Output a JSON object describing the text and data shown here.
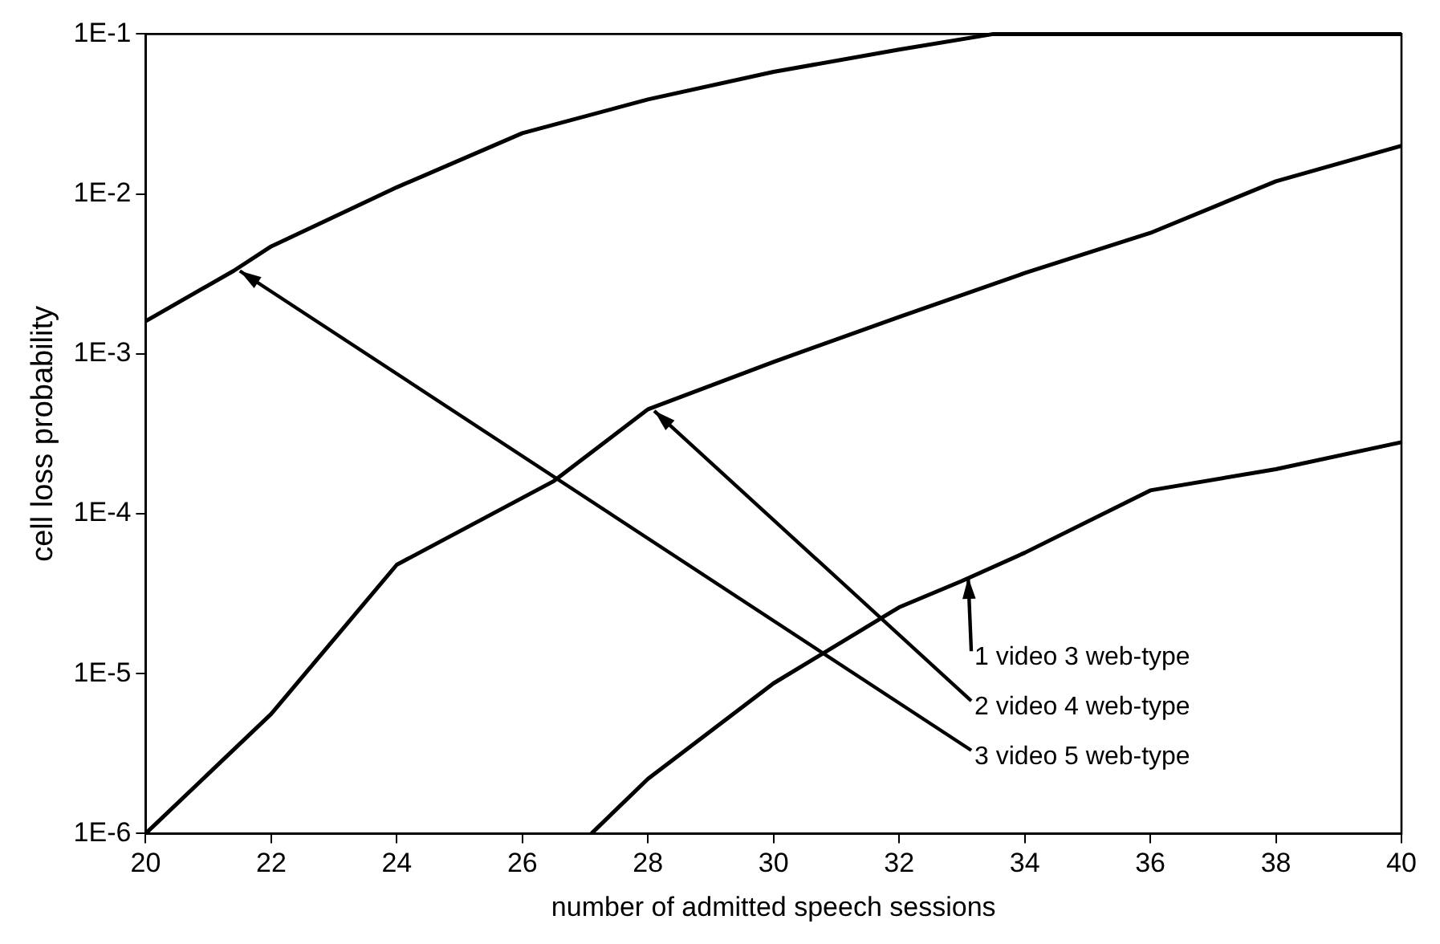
{
  "chart_data": {
    "type": "line",
    "xlabel": "number of admitted speech sessions",
    "ylabel": "cell loss probability",
    "series": [
      {
        "color": "#000000",
        "x": [
          27.1,
          28,
          30,
          32,
          33,
          34,
          36,
          38,
          40
        ],
        "values": [
          1e-06,
          2.2e-06,
          8.7e-06,
          2.6e-05,
          3.8e-05,
          5.7e-05,
          0.00014,
          0.00019,
          0.00028
        ]
      },
      {
        "color": "#000000",
        "x": [
          20,
          22,
          24,
          26.5,
          28,
          30,
          32,
          34,
          36,
          38,
          40
        ],
        "values": [
          1e-06,
          5.6e-06,
          4.8e-05,
          0.00016,
          0.00045,
          0.00089,
          0.0017,
          0.0032,
          0.0057,
          0.012,
          0.02
        ]
      },
      {
        "color": "#000000",
        "x": [
          20,
          21.4,
          22,
          24,
          26,
          28,
          30,
          32,
          33.5,
          34,
          36,
          38,
          40
        ],
        "values": [
          0.0016,
          0.0033,
          0.0047,
          0.011,
          0.024,
          0.039,
          0.058,
          0.08,
          0.1,
          0.1,
          0.1,
          0.1,
          0.1
        ]
      }
    ],
    "annotations": [
      {
        "text": "1 video 3 web-type",
        "x": 33.1,
        "y": 4e-05
      },
      {
        "text": "2 video 4 web-type",
        "x": 28.1,
        "y": 0.00044
      },
      {
        "text": "3 video 5 web-type",
        "x": 21.5,
        "y": 0.0033
      }
    ],
    "xlim": [
      20,
      40
    ],
    "xticks": [
      20,
      22,
      24,
      26,
      28,
      30,
      32,
      34,
      36,
      38,
      40
    ],
    "ylim": [
      1e-06,
      0.1
    ],
    "yticks": [
      {
        "value": 1e-06,
        "label": "1E-6"
      },
      {
        "value": 1e-05,
        "label": "1E-5"
      },
      {
        "value": 0.0001,
        "label": "1E-4"
      },
      {
        "value": 0.001,
        "label": "1E-3"
      },
      {
        "value": 0.01,
        "label": "1E-2"
      },
      {
        "value": 0.1,
        "label": "1E-1"
      }
    ],
    "log": "y",
    "grid": false,
    "legend": false,
    "marker": "none",
    "line_style": "solid"
  }
}
